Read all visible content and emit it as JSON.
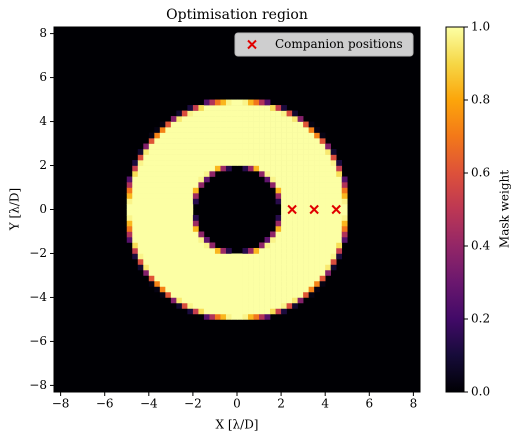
{
  "chart_data": {
    "type": "image",
    "title": "Optimisation region",
    "xlabel": "X [λ/D]",
    "ylabel": "Y [λ/D]",
    "xlim": [
      -8.3,
      8.3
    ],
    "ylim": [
      -8.3,
      8.3
    ],
    "xticks": [
      {
        "value": -8,
        "label": "−8"
      },
      {
        "value": -6,
        "label": "−6"
      },
      {
        "value": -4,
        "label": "−4"
      },
      {
        "value": -2,
        "label": "−2"
      },
      0,
      2,
      4,
      6,
      8
    ],
    "yticks": [
      {
        "value": -8,
        "label": "−8"
      },
      {
        "value": -6,
        "label": "−6"
      },
      {
        "value": -4,
        "label": "−4"
      },
      {
        "value": -2,
        "label": "−2"
      },
      0,
      2,
      4,
      6,
      8
    ],
    "mask": {
      "inner_radius": 2,
      "outer_radius": 5,
      "pixel": 0.25
    },
    "colormap": "inferno",
    "clim": [
      0,
      1
    ],
    "cticks": [
      {
        "value": 0,
        "label": "0.0"
      },
      {
        "value": 0.2,
        "label": "0.2"
      },
      {
        "value": 0.4,
        "label": "0.4"
      },
      {
        "value": 0.6,
        "label": "0.6"
      },
      {
        "value": 0.8,
        "label": "0.8"
      },
      {
        "value": 1,
        "label": "1.0"
      }
    ],
    "colorbar_label": "Mask weight",
    "series": [
      {
        "name": "Companion positions",
        "color": "#e00000",
        "x": [
          2.5,
          3.5,
          4.5
        ],
        "values": [
          0,
          0,
          0
        ]
      }
    ],
    "legend": "upper right"
  }
}
